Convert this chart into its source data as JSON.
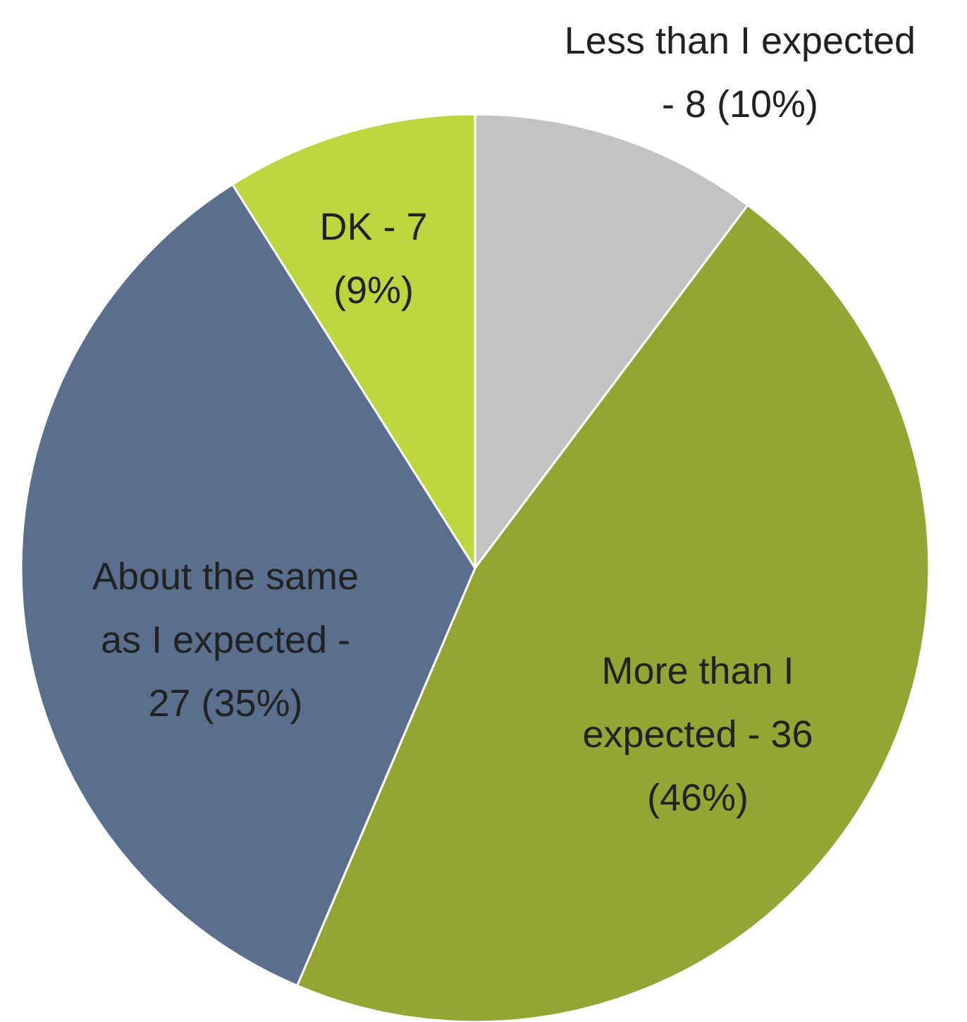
{
  "chart_data": {
    "type": "pie",
    "categories": [
      "Less than I expected\n- 8 (10%)",
      "More than I\nexpected - 36\n(46%)",
      "About the same\nas I expected -\n27 (35%)",
      "DK - 7\n(9%)"
    ],
    "values": [
      8,
      36,
      27,
      7
    ],
    "colors": [
      "#c3c3c3",
      "#94a533",
      "#5a6e8e",
      "#bcd640"
    ]
  }
}
